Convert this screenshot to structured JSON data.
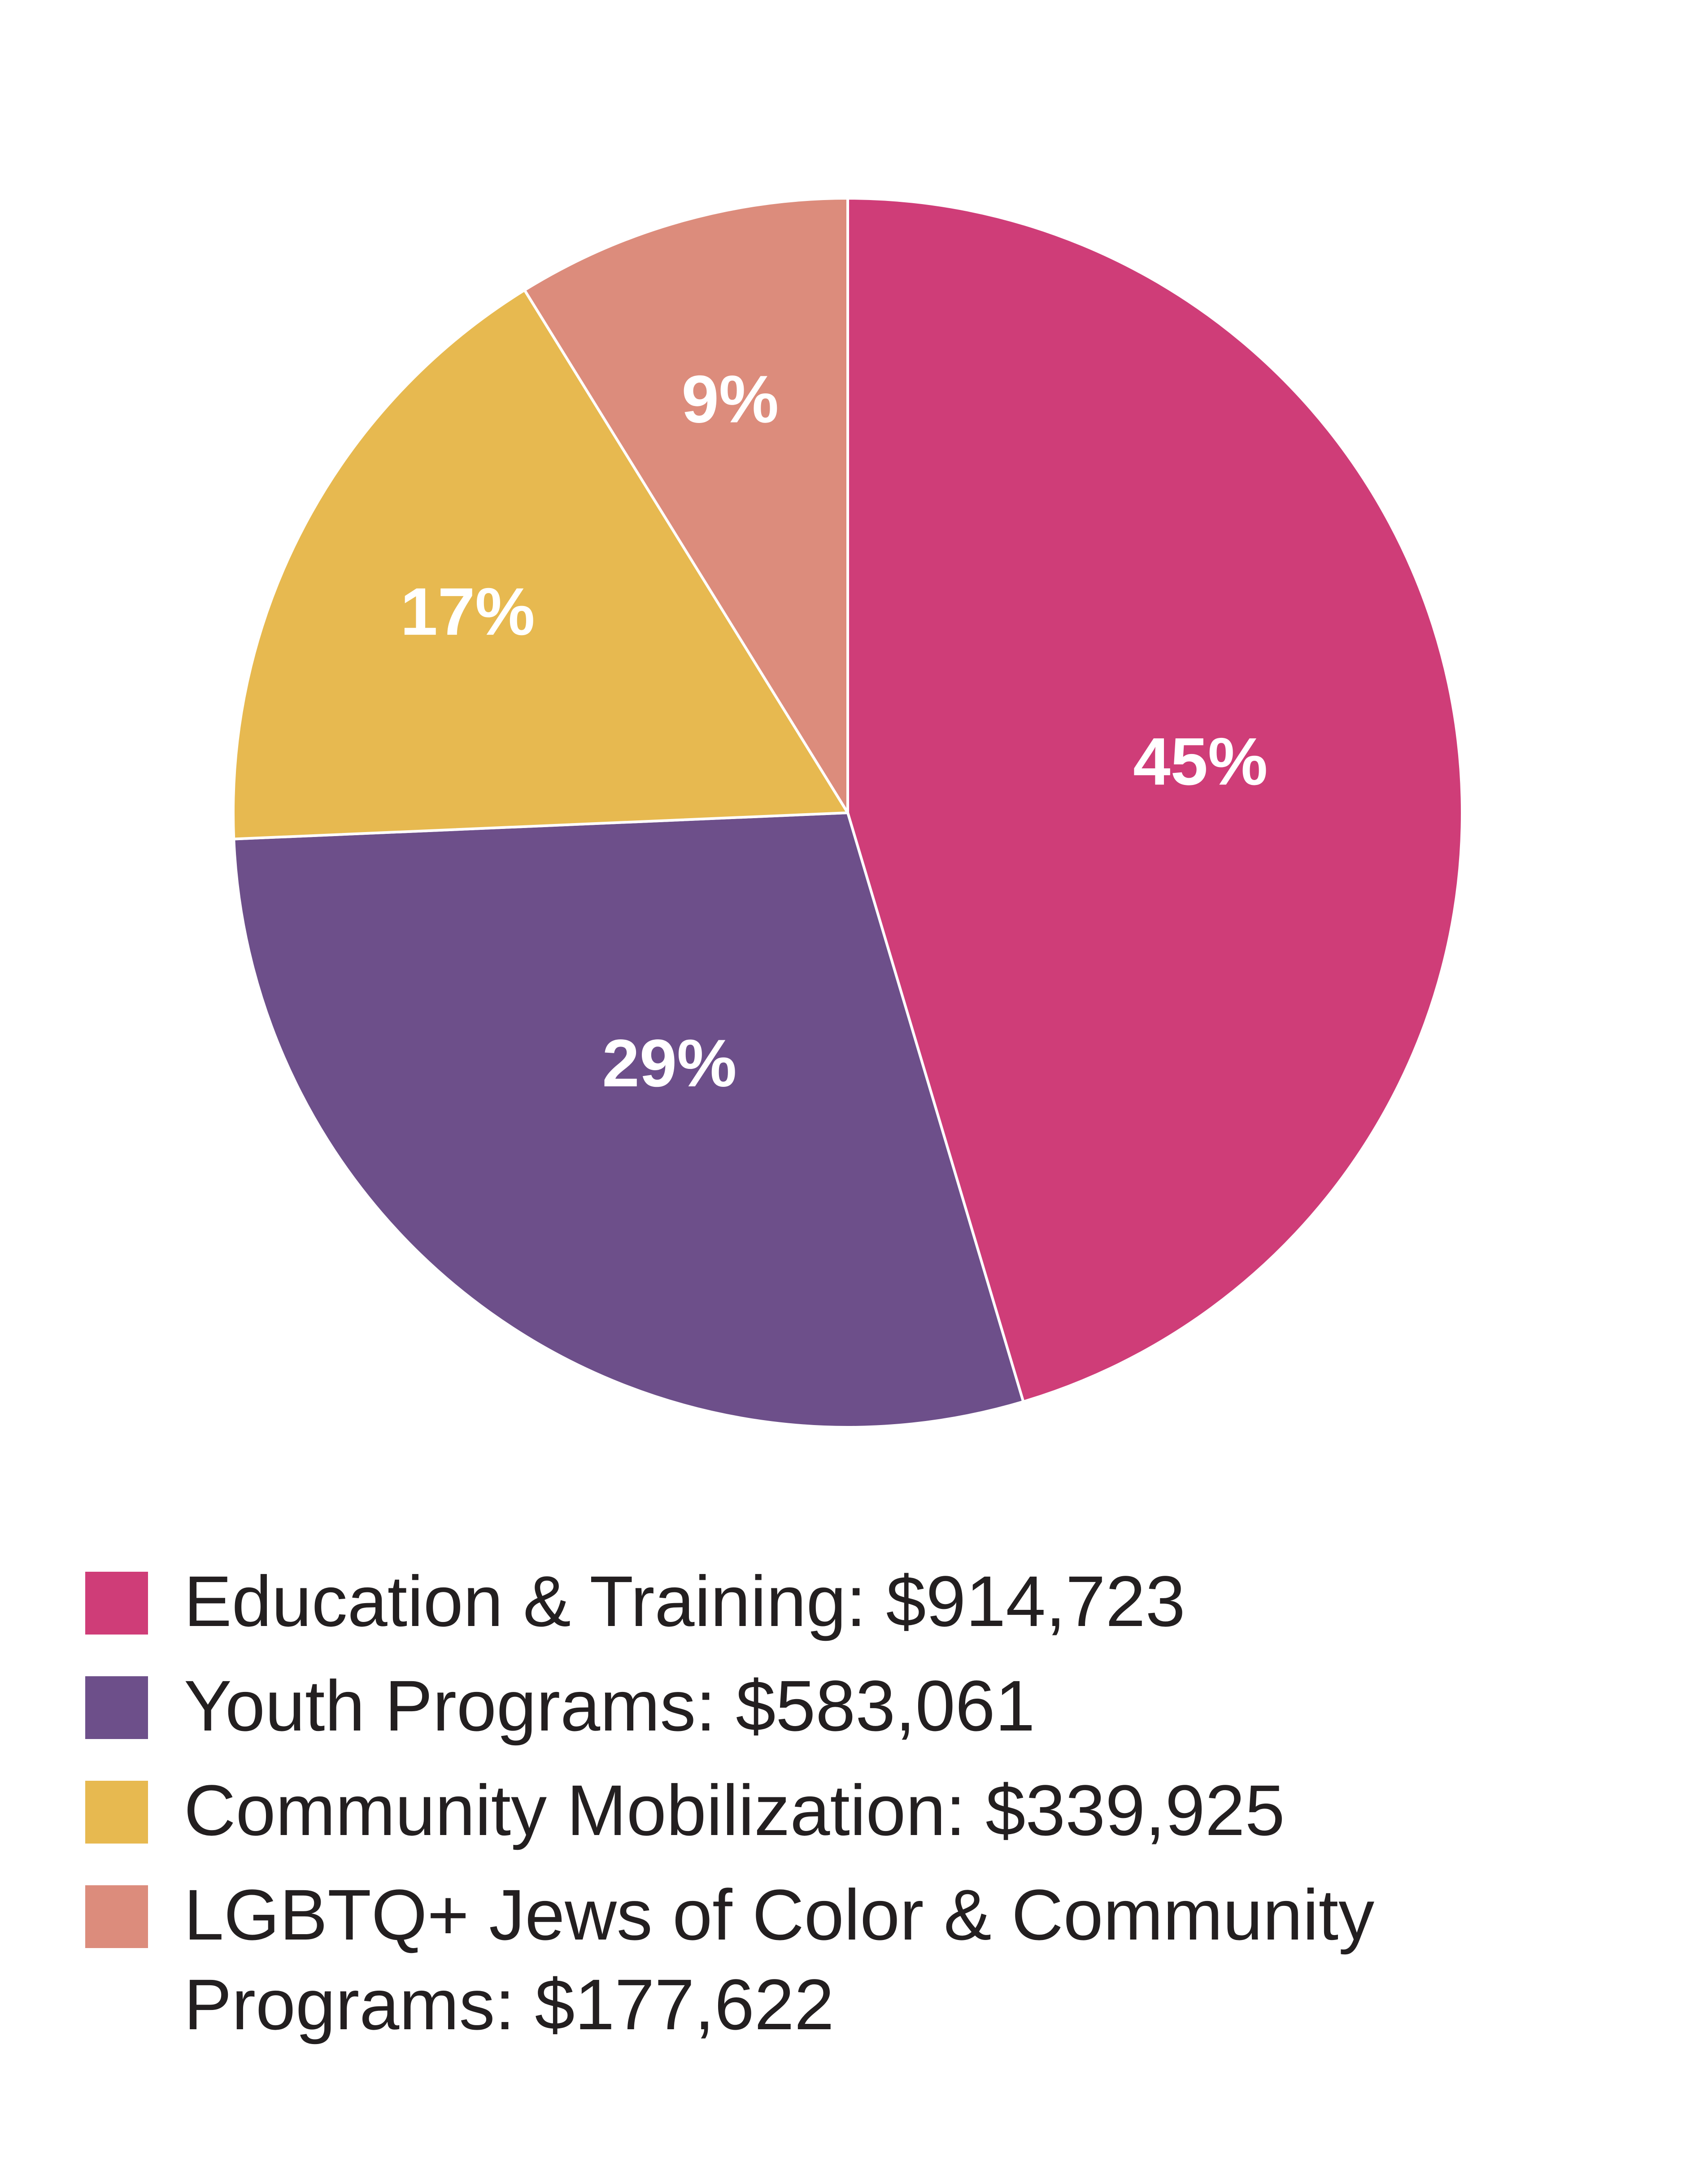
{
  "chart_data": {
    "type": "pie",
    "slices": [
      {
        "label": "Education & Training",
        "amount": "$914,723",
        "value": 914723,
        "percent_label": "45%",
        "color": "#cf3d78"
      },
      {
        "label": "Youth Programs",
        "amount": "$583,061",
        "value": 583061,
        "percent_label": "29%",
        "color": "#6d4f8a"
      },
      {
        "label": "Community Mobilization",
        "amount": "$339,925",
        "value": 339925,
        "percent_label": "17%",
        "color": "#e7b950"
      },
      {
        "label": "LGBTQ+ Jews of Color & Community Programs",
        "amount": "$177,622",
        "value": 177622,
        "percent_label": "9%",
        "color": "#dc8c7c"
      }
    ],
    "legend_placement": "bottom",
    "start_angle": "12 o'clock",
    "direction": "clockwise"
  },
  "legend": {
    "items": [
      {
        "text": "Education & Training: $914,723"
      },
      {
        "text": "Youth Programs: $583,061"
      },
      {
        "text": "Community Mobilization: $339,925"
      },
      {
        "text": "LGBTQ+ Jews of Color & Community Programs: $177,622"
      }
    ]
  }
}
